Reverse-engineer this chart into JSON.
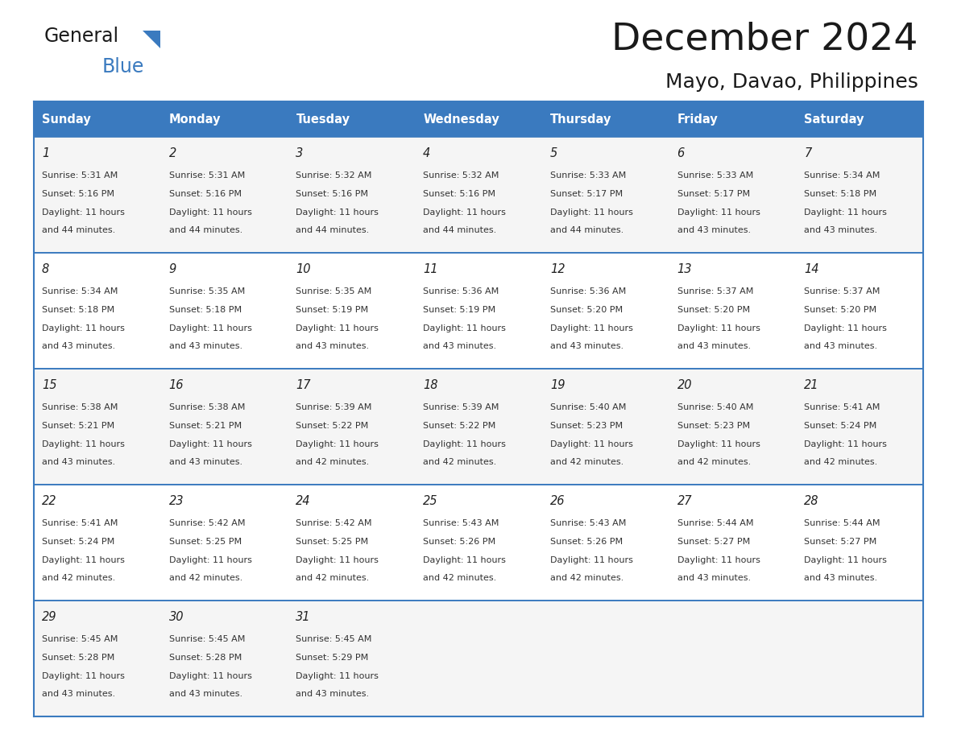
{
  "title": "December 2024",
  "subtitle": "Mayo, Davao, Philippines",
  "header_color": "#3a7abf",
  "header_text_color": "#ffffff",
  "border_color": "#3a7abf",
  "days_of_week": [
    "Sunday",
    "Monday",
    "Tuesday",
    "Wednesday",
    "Thursday",
    "Friday",
    "Saturday"
  ],
  "weeks": [
    [
      {
        "day": "1",
        "sunrise": "5:31 AM",
        "sunset": "5:16 PM",
        "daylight": "11 hours\nand 44 minutes."
      },
      {
        "day": "2",
        "sunrise": "5:31 AM",
        "sunset": "5:16 PM",
        "daylight": "11 hours\nand 44 minutes."
      },
      {
        "day": "3",
        "sunrise": "5:32 AM",
        "sunset": "5:16 PM",
        "daylight": "11 hours\nand 44 minutes."
      },
      {
        "day": "4",
        "sunrise": "5:32 AM",
        "sunset": "5:16 PM",
        "daylight": "11 hours\nand 44 minutes."
      },
      {
        "day": "5",
        "sunrise": "5:33 AM",
        "sunset": "5:17 PM",
        "daylight": "11 hours\nand 44 minutes."
      },
      {
        "day": "6",
        "sunrise": "5:33 AM",
        "sunset": "5:17 PM",
        "daylight": "11 hours\nand 43 minutes."
      },
      {
        "day": "7",
        "sunrise": "5:34 AM",
        "sunset": "5:18 PM",
        "daylight": "11 hours\nand 43 minutes."
      }
    ],
    [
      {
        "day": "8",
        "sunrise": "5:34 AM",
        "sunset": "5:18 PM",
        "daylight": "11 hours\nand 43 minutes."
      },
      {
        "day": "9",
        "sunrise": "5:35 AM",
        "sunset": "5:18 PM",
        "daylight": "11 hours\nand 43 minutes."
      },
      {
        "day": "10",
        "sunrise": "5:35 AM",
        "sunset": "5:19 PM",
        "daylight": "11 hours\nand 43 minutes."
      },
      {
        "day": "11",
        "sunrise": "5:36 AM",
        "sunset": "5:19 PM",
        "daylight": "11 hours\nand 43 minutes."
      },
      {
        "day": "12",
        "sunrise": "5:36 AM",
        "sunset": "5:20 PM",
        "daylight": "11 hours\nand 43 minutes."
      },
      {
        "day": "13",
        "sunrise": "5:37 AM",
        "sunset": "5:20 PM",
        "daylight": "11 hours\nand 43 minutes."
      },
      {
        "day": "14",
        "sunrise": "5:37 AM",
        "sunset": "5:20 PM",
        "daylight": "11 hours\nand 43 minutes."
      }
    ],
    [
      {
        "day": "15",
        "sunrise": "5:38 AM",
        "sunset": "5:21 PM",
        "daylight": "11 hours\nand 43 minutes."
      },
      {
        "day": "16",
        "sunrise": "5:38 AM",
        "sunset": "5:21 PM",
        "daylight": "11 hours\nand 43 minutes."
      },
      {
        "day": "17",
        "sunrise": "5:39 AM",
        "sunset": "5:22 PM",
        "daylight": "11 hours\nand 42 minutes."
      },
      {
        "day": "18",
        "sunrise": "5:39 AM",
        "sunset": "5:22 PM",
        "daylight": "11 hours\nand 42 minutes."
      },
      {
        "day": "19",
        "sunrise": "5:40 AM",
        "sunset": "5:23 PM",
        "daylight": "11 hours\nand 42 minutes."
      },
      {
        "day": "20",
        "sunrise": "5:40 AM",
        "sunset": "5:23 PM",
        "daylight": "11 hours\nand 42 minutes."
      },
      {
        "day": "21",
        "sunrise": "5:41 AM",
        "sunset": "5:24 PM",
        "daylight": "11 hours\nand 42 minutes."
      }
    ],
    [
      {
        "day": "22",
        "sunrise": "5:41 AM",
        "sunset": "5:24 PM",
        "daylight": "11 hours\nand 42 minutes."
      },
      {
        "day": "23",
        "sunrise": "5:42 AM",
        "sunset": "5:25 PM",
        "daylight": "11 hours\nand 42 minutes."
      },
      {
        "day": "24",
        "sunrise": "5:42 AM",
        "sunset": "5:25 PM",
        "daylight": "11 hours\nand 42 minutes."
      },
      {
        "day": "25",
        "sunrise": "5:43 AM",
        "sunset": "5:26 PM",
        "daylight": "11 hours\nand 42 minutes."
      },
      {
        "day": "26",
        "sunrise": "5:43 AM",
        "sunset": "5:26 PM",
        "daylight": "11 hours\nand 42 minutes."
      },
      {
        "day": "27",
        "sunrise": "5:44 AM",
        "sunset": "5:27 PM",
        "daylight": "11 hours\nand 43 minutes."
      },
      {
        "day": "28",
        "sunrise": "5:44 AM",
        "sunset": "5:27 PM",
        "daylight": "11 hours\nand 43 minutes."
      }
    ],
    [
      {
        "day": "29",
        "sunrise": "5:45 AM",
        "sunset": "5:28 PM",
        "daylight": "11 hours\nand 43 minutes."
      },
      {
        "day": "30",
        "sunrise": "5:45 AM",
        "sunset": "5:28 PM",
        "daylight": "11 hours\nand 43 minutes."
      },
      {
        "day": "31",
        "sunrise": "5:45 AM",
        "sunset": "5:29 PM",
        "daylight": "11 hours\nand 43 minutes."
      },
      null,
      null,
      null,
      null
    ]
  ]
}
